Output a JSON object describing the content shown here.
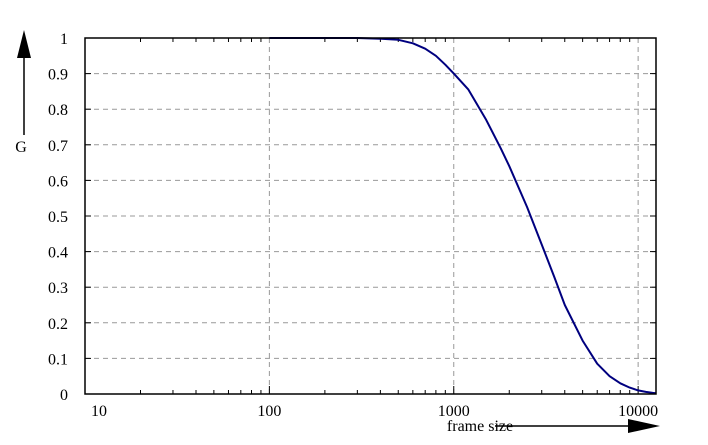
{
  "chart_data": {
    "type": "line",
    "title": "",
    "xlabel": "frame size",
    "ylabel": "G",
    "xscale": "log",
    "xlim": [
      10,
      12500
    ],
    "ylim": [
      0,
      1
    ],
    "x_ticks": [
      10,
      100,
      1000,
      10000
    ],
    "x_tick_labels": [
      "10",
      "100",
      "1000",
      "10000"
    ],
    "y_ticks": [
      0,
      0.1,
      0.2,
      0.3,
      0.4,
      0.5,
      0.6,
      0.7,
      0.8,
      0.9,
      1
    ],
    "y_tick_labels": [
      "0",
      "0.1",
      "0.2",
      "0.3",
      "0.4",
      "0.5",
      "0.6",
      "0.7",
      "0.8",
      "0.9",
      "1"
    ],
    "grid": true,
    "line_color": "#00007f",
    "series": [
      {
        "x": [
          100,
          200,
          300,
          400,
          500,
          600,
          700,
          800,
          900,
          1000,
          1200,
          1500,
          1800,
          2000,
          2500,
          3000,
          3500,
          4000,
          5000,
          6000,
          7000,
          8000,
          9000,
          10000,
          11000,
          12000,
          12500
        ],
        "values": [
          1.0,
          1.0,
          1.0,
          0.998,
          0.995,
          0.985,
          0.97,
          0.95,
          0.925,
          0.9,
          0.855,
          0.77,
          0.69,
          0.64,
          0.525,
          0.42,
          0.33,
          0.25,
          0.15,
          0.085,
          0.05,
          0.03,
          0.018,
          0.01,
          0.006,
          0.003,
          0.002
        ]
      }
    ]
  }
}
